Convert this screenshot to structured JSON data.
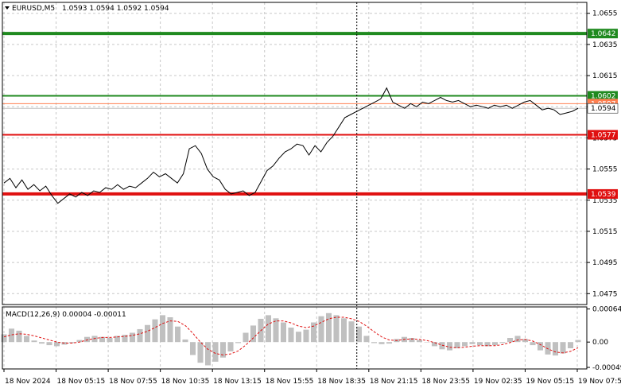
{
  "header": {
    "symbol_label": "EURUSD,M5",
    "ohlc_label": "1.0593 1.0594 1.0592 1.0594"
  },
  "macd_panel": {
    "label": "MACD(12,26,9) 0.00004 -0.00011"
  },
  "colors": {
    "background": "#ffffff",
    "grid": "#c8c8c8",
    "price_line": "#000000",
    "resistance": "#1f8a1f",
    "support": "#e01010",
    "price_marker": "#ff7f50",
    "macd_histogram": "#c0c0c0",
    "macd_signal": "#e01010",
    "axis_text": "#000000"
  },
  "chart_data": [
    {
      "type": "line",
      "symbol": "EURUSD",
      "timeframe": "M5",
      "ylim": [
        1.0468,
        1.0662
      ],
      "y_ticks": [
        "1.0655",
        "1.0635",
        "1.0615",
        "1.0595",
        "1.0575",
        "1.0555",
        "1.0535",
        "1.0515",
        "1.0495",
        "1.0475"
      ],
      "x_ticks": [
        "18 Nov 2024",
        "18 Nov 05:15",
        "18 Nov 07:55",
        "18 Nov 10:35",
        "18 Nov 13:15",
        "18 Nov 15:55",
        "18 Nov 18:35",
        "18 Nov 21:15",
        "18 Nov 23:55",
        "19 Nov 02:35",
        "19 Nov 05:15",
        "19 Nov 07:55"
      ],
      "series": [
        {
          "values": [
            1.0546,
            1.0549,
            1.0543,
            1.0548,
            1.0542,
            1.0545,
            1.0541,
            1.0544,
            1.0538,
            1.0533,
            1.0536,
            1.0539,
            1.0537,
            1.054,
            1.0538,
            1.0541,
            1.054,
            1.0543,
            1.0542,
            1.0545,
            1.0542,
            1.0544,
            1.0543,
            1.0546,
            1.0549,
            1.0553,
            1.055,
            1.0552,
            1.0549,
            1.0546,
            1.0552,
            1.0568,
            1.057,
            1.0565,
            1.0555,
            1.055,
            1.0548,
            1.0542,
            1.0539,
            1.054,
            1.0541,
            1.0538,
            1.054,
            1.0547,
            1.0554,
            1.0557,
            1.0562,
            1.0566,
            1.0568,
            1.0571,
            1.057,
            1.0564,
            1.057,
            1.0566,
            1.0572,
            1.0576,
            1.0582,
            1.0588,
            1.059,
            1.0592,
            1.0594,
            1.0596,
            1.0598,
            1.06,
            1.0607,
            1.0598,
            1.0596,
            1.0594,
            1.0597,
            1.0595,
            1.0598,
            1.0597,
            1.0599,
            1.0601,
            1.0599,
            1.0598,
            1.0599,
            1.0597,
            1.0595,
            1.0596,
            1.0595,
            1.0594,
            1.0596,
            1.0595,
            1.0596,
            1.0594,
            1.0596,
            1.0598,
            1.0599,
            1.0596,
            1.0593,
            1.0594,
            1.0593,
            1.059,
            1.0591,
            1.0592,
            1.0594
          ]
        }
      ],
      "horizontal_levels": [
        {
          "price": 1.0642,
          "label": "1.0642",
          "role": "resistance"
        },
        {
          "price": 1.0602,
          "label": "1.0602",
          "role": "resistance"
        },
        {
          "price": 1.0597,
          "label": "1.0597",
          "role": "marker"
        },
        {
          "price": 1.0594,
          "label": "1.0594",
          "role": "current"
        },
        {
          "price": 1.0577,
          "label": "1.0577",
          "role": "support"
        },
        {
          "price": 1.0539,
          "label": "1.0539",
          "role": "support"
        }
      ],
      "vertical_marker_index": 59
    },
    {
      "type": "bar",
      "title": "MACD(12,26,9)",
      "ylim": [
        -0.00052,
        0.00068
      ],
      "y_ticks": [
        "0.00064",
        "0.00",
        "-0.00049"
      ],
      "series": [
        {
          "name": "histogram",
          "values": [
            0.00015,
            0.00026,
            0.00022,
            0.00012,
            3e-05,
            -3e-05,
            -6e-05,
            -8e-05,
            -5e-05,
            -2e-05,
            4e-05,
            0.0001,
            0.00012,
            0.0001,
            8e-05,
            0.00012,
            0.00014,
            0.00018,
            0.00025,
            0.00033,
            0.00044,
            0.00052,
            0.00048,
            0.0003,
            5e-05,
            -0.00025,
            -0.0004,
            -0.00045,
            -0.00038,
            -0.0003,
            -0.00018,
            -2e-05,
            0.00018,
            0.00032,
            0.00045,
            0.00052,
            0.00046,
            0.00038,
            0.00028,
            0.0002,
            0.00024,
            0.00038,
            0.0005,
            0.00056,
            0.00052,
            0.00046,
            0.0004,
            0.0003,
            0.00012,
            -2e-05,
            -4e-05,
            -3e-05,
            6e-05,
            0.0001,
            8e-05,
            4e-05,
            0.0,
            -8e-05,
            -0.00014,
            -0.00016,
            -0.00012,
            -8e-05,
            -4e-05,
            -6e-05,
            -8e-05,
            -6e-05,
            -2e-05,
            8e-05,
            0.00012,
            6e-05,
            -6e-05,
            -0.00016,
            -0.00024,
            -0.00026,
            -0.00022,
            -0.00012,
            4e-05
          ]
        },
        {
          "name": "signal",
          "values": [
            0.0001,
            0.00014,
            0.00016,
            0.00015,
            0.00012,
            8e-05,
            4e-05,
            0.0,
            -2e-05,
            -2e-05,
            0.0,
            4e-05,
            7e-05,
            9e-05,
            9e-05,
            0.0001,
            0.00011,
            0.00013,
            0.00016,
            0.00021,
            0.00028,
            0.00036,
            0.00041,
            0.0004,
            0.00032,
            0.00017,
            0.0,
            -0.00014,
            -0.00022,
            -0.00025,
            -0.00023,
            -0.00017,
            -6e-05,
            8e-05,
            0.00022,
            0.00035,
            0.00041,
            0.00041,
            0.00037,
            0.00031,
            0.00028,
            0.00031,
            0.00038,
            0.00045,
            0.00048,
            0.00048,
            0.00045,
            0.0004,
            0.00031,
            0.0002,
            0.0001,
            4e-05,
            3e-05,
            5e-05,
            6e-05,
            5e-05,
            3e-05,
            -1e-05,
            -6e-05,
            -0.0001,
            -0.00011,
            -0.0001,
            -8e-05,
            -7e-05,
            -7e-05,
            -7e-05,
            -5e-05,
            -1e-05,
            4e-05,
            5e-05,
            2e-05,
            -5e-05,
            -0.00013,
            -0.00019,
            -0.00021,
            -0.00018,
            -0.00011
          ]
        }
      ]
    }
  ]
}
